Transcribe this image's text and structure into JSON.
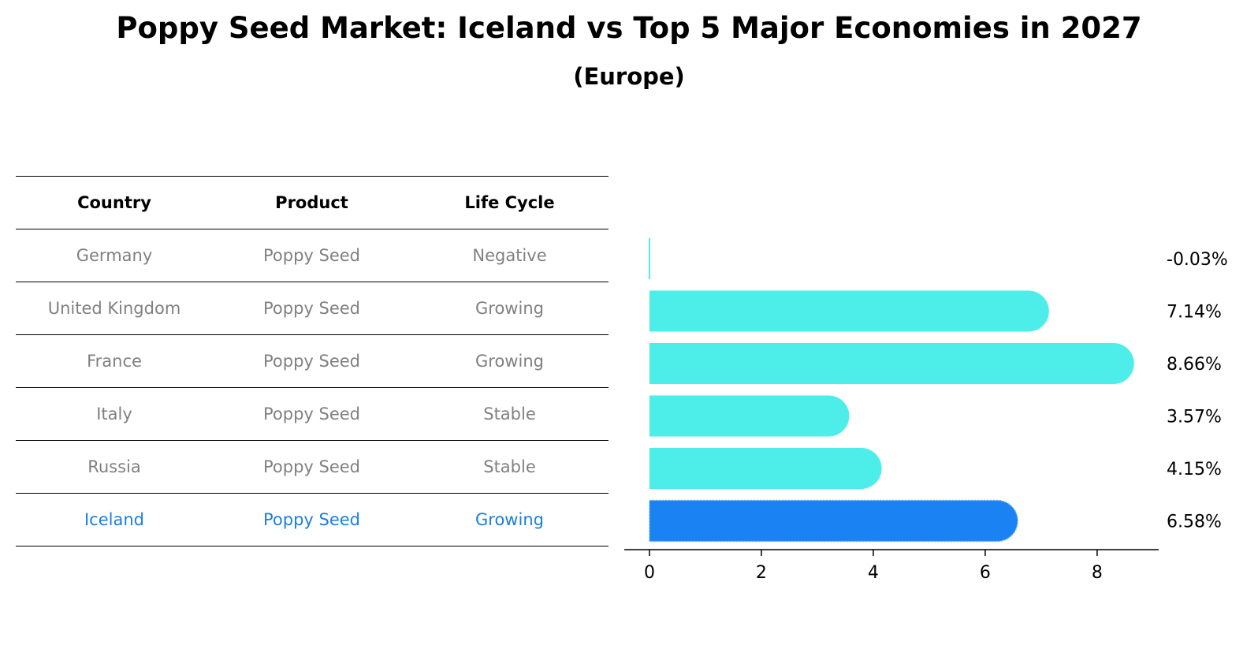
{
  "chart_data": {
    "type": "bar",
    "orientation": "horizontal",
    "title": "Poppy Seed Market: Iceland vs Top 5 Major Economies in 2027",
    "subtitle": "(Europe)",
    "categories": [
      "Germany",
      "United Kingdom",
      "France",
      "Italy",
      "Russia",
      "Iceland"
    ],
    "values": [
      -0.03,
      7.14,
      8.66,
      3.57,
      4.15,
      6.58
    ],
    "value_labels": [
      "-0.03%",
      "7.14%",
      "8.66%",
      "3.57%",
      "4.15%",
      "6.58%"
    ],
    "highlight": "Iceland",
    "xlim": [
      -0.45,
      9.1
    ],
    "xticks": [
      0,
      2,
      4,
      6,
      8
    ],
    "xlabel": "",
    "ylabel": "",
    "grid": false,
    "colors": {
      "bar": "#4deeea",
      "highlight": "#1a82f2"
    }
  },
  "table": {
    "headers": [
      "Country",
      "Product",
      "Life Cycle"
    ],
    "rows": [
      {
        "country": "Germany",
        "product": "Poppy Seed",
        "life_cycle": "Negative"
      },
      {
        "country": "United Kingdom",
        "product": "Poppy Seed",
        "life_cycle": "Growing"
      },
      {
        "country": "France",
        "product": "Poppy Seed",
        "life_cycle": "Growing"
      },
      {
        "country": "Italy",
        "product": "Poppy Seed",
        "life_cycle": "Stable"
      },
      {
        "country": "Russia",
        "product": "Poppy Seed",
        "life_cycle": "Stable"
      },
      {
        "country": "Iceland",
        "product": "Poppy Seed",
        "life_cycle": "Growing"
      }
    ]
  }
}
